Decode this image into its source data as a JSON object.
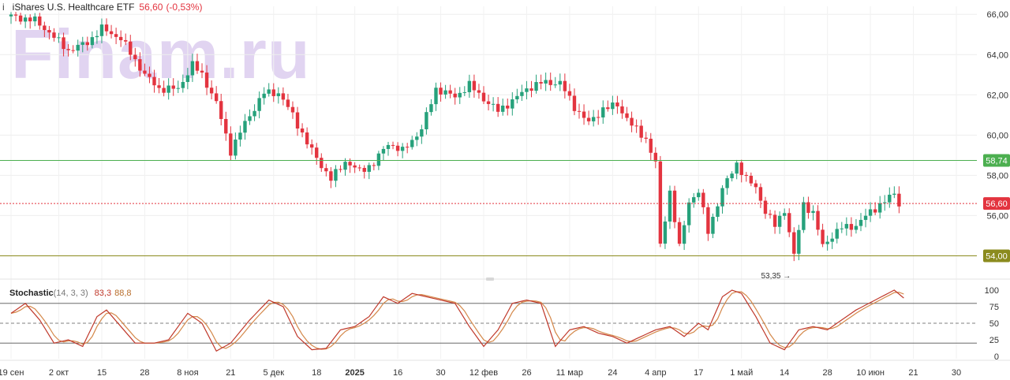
{
  "header": {
    "symbol_icon": "i",
    "title": "iShares U.S. Healthcare ETF",
    "price": "56,60",
    "change": "(-0,53%)"
  },
  "watermark": "Finam.ru",
  "indicator": {
    "name": "Stochastic",
    "params": "(14, 3, 3)",
    "k_value": "83,3",
    "d_value": "88,8",
    "k_color": "#c0392b",
    "d_color": "#d4884a"
  },
  "colors": {
    "up": "#26a17b",
    "down": "#e3343f",
    "resistance": "#4caf50",
    "support": "#8b8b1e",
    "current": "#e3343f"
  },
  "chart_data": {
    "type": "candlestick",
    "y_axis": {
      "min": 53,
      "max": 66.4,
      "ticks": [
        {
          "v": 66,
          "label": "66,00"
        },
        {
          "v": 64,
          "label": "64,00"
        },
        {
          "v": 62,
          "label": "62,00"
        },
        {
          "v": 60,
          "label": "60,00"
        },
        {
          "v": 58,
          "label": "58,00"
        },
        {
          "v": 56,
          "label": "56,00"
        }
      ]
    },
    "x_ticks": [
      {
        "i": 0,
        "label": "19 сен",
        "bold": false
      },
      {
        "i": 10,
        "label": "2 окт",
        "bold": false
      },
      {
        "i": 19,
        "label": "15",
        "bold": false
      },
      {
        "i": 28,
        "label": "28",
        "bold": false
      },
      {
        "i": 37,
        "label": "8 ноя",
        "bold": false
      },
      {
        "i": 46,
        "label": "21",
        "bold": false
      },
      {
        "i": 55,
        "label": "5 дек",
        "bold": false
      },
      {
        "i": 64,
        "label": "18",
        "bold": false
      },
      {
        "i": 72,
        "label": "2025",
        "bold": true
      },
      {
        "i": 81,
        "label": "16",
        "bold": false
      },
      {
        "i": 90,
        "label": "30",
        "bold": false
      },
      {
        "i": 99,
        "label": "12 фев",
        "bold": false
      },
      {
        "i": 108,
        "label": "26",
        "bold": false
      },
      {
        "i": 117,
        "label": "11 мар",
        "bold": false
      },
      {
        "i": 126,
        "label": "24",
        "bold": false
      },
      {
        "i": 135,
        "label": "4 апр",
        "bold": false
      },
      {
        "i": 144,
        "label": "17",
        "bold": false
      },
      {
        "i": 153,
        "label": "1 май",
        "bold": false
      },
      {
        "i": 162,
        "label": "14",
        "bold": false
      },
      {
        "i": 171,
        "label": "28",
        "bold": false
      },
      {
        "i": 180,
        "label": "10 июн",
        "bold": false
      },
      {
        "i": 189,
        "label": "21",
        "bold": false
      },
      {
        "i": 198,
        "label": "30",
        "bold": false
      }
    ],
    "levels": [
      {
        "value": 58.74,
        "label": "58,74",
        "style": "resistance"
      },
      {
        "value": 56.6,
        "label": "56,60",
        "style": "current"
      },
      {
        "value": 54.0,
        "label": "54,00",
        "style": "support"
      }
    ],
    "annotation": {
      "index": 164,
      "value": 53.35,
      "label": "53,35 →"
    },
    "anchors": [
      [
        0,
        65.9
      ],
      [
        5,
        65.7
      ],
      [
        8,
        65.1
      ],
      [
        12,
        64.2
      ],
      [
        16,
        64.6
      ],
      [
        19,
        65.3
      ],
      [
        23,
        64.8
      ],
      [
        28,
        63.0
      ],
      [
        31,
        62.3
      ],
      [
        35,
        62.3
      ],
      [
        38,
        63.5
      ],
      [
        40,
        63.0
      ],
      [
        43,
        61.6
      ],
      [
        46,
        59.2
      ],
      [
        49,
        60.6
      ],
      [
        53,
        62.1
      ],
      [
        56,
        62.1
      ],
      [
        59,
        61.0
      ],
      [
        62,
        59.6
      ],
      [
        65,
        58.5
      ],
      [
        67,
        57.8
      ],
      [
        70,
        58.7
      ],
      [
        73,
        58.2
      ],
      [
        76,
        58.6
      ],
      [
        79,
        59.6
      ],
      [
        82,
        59.2
      ],
      [
        86,
        60.3
      ],
      [
        89,
        62.3
      ],
      [
        93,
        61.9
      ],
      [
        96,
        62.5
      ],
      [
        99,
        61.8
      ],
      [
        102,
        61.2
      ],
      [
        105,
        61.7
      ],
      [
        108,
        62.3
      ],
      [
        111,
        62.6
      ],
      [
        115,
        62.6
      ],
      [
        118,
        61.4
      ],
      [
        121,
        60.6
      ],
      [
        124,
        61.3
      ],
      [
        127,
        61.5
      ],
      [
        130,
        60.5
      ],
      [
        133,
        59.8
      ],
      [
        135,
        58.6
      ],
      [
        136,
        54.5
      ],
      [
        138,
        57.2
      ],
      [
        140,
        54.4
      ],
      [
        142,
        56.7
      ],
      [
        144,
        57.2
      ],
      [
        146,
        55.2
      ],
      [
        149,
        57.3
      ],
      [
        152,
        58.6
      ],
      [
        154,
        57.8
      ],
      [
        156,
        57.4
      ],
      [
        158,
        56.2
      ],
      [
        160,
        55.5
      ],
      [
        162,
        56.3
      ],
      [
        164,
        54.0
      ],
      [
        166,
        56.6
      ],
      [
        168,
        56.1
      ],
      [
        170,
        54.5
      ],
      [
        172,
        55.0
      ],
      [
        174,
        55.4
      ],
      [
        177,
        55.5
      ],
      [
        180,
        56.2
      ],
      [
        183,
        56.7
      ],
      [
        185,
        57.1
      ],
      [
        186,
        56.6
      ]
    ],
    "stochastic": {
      "y_ticks": [
        {
          "v": 100,
          "label": "100"
        },
        {
          "v": 75,
          "label": "75"
        },
        {
          "v": 50,
          "label": "50"
        },
        {
          "v": 25,
          "label": "25"
        },
        {
          "v": 0,
          "label": "0"
        }
      ],
      "bands": [
        80,
        50,
        20
      ],
      "k_anchors": [
        [
          0,
          65
        ],
        [
          3,
          80
        ],
        [
          6,
          55
        ],
        [
          9,
          20
        ],
        [
          12,
          25
        ],
        [
          15,
          15
        ],
        [
          18,
          60
        ],
        [
          20,
          70
        ],
        [
          23,
          45
        ],
        [
          26,
          20
        ],
        [
          30,
          20
        ],
        [
          33,
          25
        ],
        [
          37,
          65
        ],
        [
          40,
          50
        ],
        [
          43,
          8
        ],
        [
          46,
          20
        ],
        [
          50,
          55
        ],
        [
          54,
          85
        ],
        [
          57,
          75
        ],
        [
          60,
          30
        ],
        [
          63,
          10
        ],
        [
          66,
          12
        ],
        [
          69,
          40
        ],
        [
          72,
          45
        ],
        [
          75,
          60
        ],
        [
          78,
          90
        ],
        [
          81,
          80
        ],
        [
          84,
          95
        ],
        [
          87,
          90
        ],
        [
          90,
          85
        ],
        [
          93,
          80
        ],
        [
          96,
          45
        ],
        [
          99,
          15
        ],
        [
          102,
          40
        ],
        [
          105,
          80
        ],
        [
          108,
          85
        ],
        [
          111,
          80
        ],
        [
          114,
          15
        ],
        [
          117,
          40
        ],
        [
          120,
          45
        ],
        [
          123,
          35
        ],
        [
          126,
          30
        ],
        [
          129,
          20
        ],
        [
          132,
          30
        ],
        [
          135,
          40
        ],
        [
          138,
          45
        ],
        [
          141,
          30
        ],
        [
          144,
          50
        ],
        [
          146,
          40
        ],
        [
          149,
          90
        ],
        [
          151,
          100
        ],
        [
          153,
          95
        ],
        [
          156,
          60
        ],
        [
          159,
          20
        ],
        [
          162,
          10
        ],
        [
          165,
          40
        ],
        [
          168,
          45
        ],
        [
          171,
          40
        ],
        [
          174,
          55
        ],
        [
          177,
          70
        ],
        [
          181,
          85
        ],
        [
          185,
          100
        ],
        [
          187,
          88
        ]
      ],
      "k_last": 83.3,
      "d_last": 88.8
    }
  }
}
